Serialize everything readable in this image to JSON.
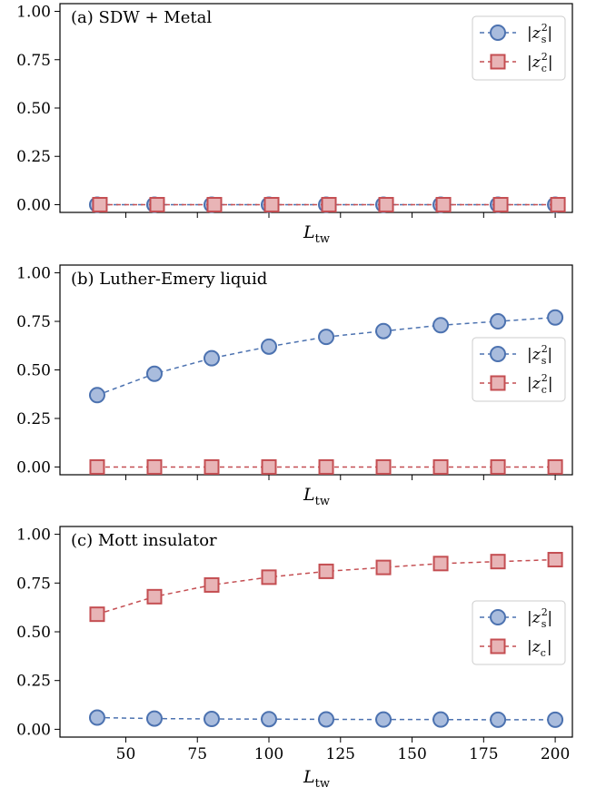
{
  "chart_data": [
    {
      "type": "line",
      "title": "(a) SDW + Metal",
      "xlabel": "L",
      "xlabel_sub": "tw",
      "x": [
        40,
        60,
        80,
        100,
        120,
        140,
        160,
        180,
        200
      ],
      "xlim": [
        27,
        206
      ],
      "ylim": [
        -0.04,
        1.04
      ],
      "x_ticks": [
        50,
        75,
        100,
        125,
        150,
        175,
        200
      ],
      "show_x_tick_labels": false,
      "y_ticks": [
        "0.00",
        "0.25",
        "0.50",
        "0.75",
        "1.00"
      ],
      "legend_position": "top-right",
      "series": [
        {
          "name": "z",
          "name_sup": "2",
          "name_sub": "s",
          "marker": "circle",
          "color": "#4c72b0",
          "fill": "#a9bcdd",
          "x_offset": 0,
          "values": [
            0.0,
            0.0,
            0.0,
            0.0,
            0.0,
            0.0,
            0.0,
            0.0,
            0.0
          ]
        },
        {
          "name": "z",
          "name_sup": "2",
          "name_sub": "c",
          "marker": "square",
          "color": "#c44e52",
          "fill": "#e8b4b6",
          "x_offset": 3,
          "values": [
            0.0,
            0.0,
            0.0,
            0.0,
            0.0,
            0.0,
            0.0,
            0.0,
            0.0
          ]
        }
      ]
    },
    {
      "type": "line",
      "title": "(b) Luther-Emery liquid",
      "xlabel": "L",
      "xlabel_sub": "tw",
      "x": [
        40,
        60,
        80,
        100,
        120,
        140,
        160,
        180,
        200
      ],
      "xlim": [
        27,
        206
      ],
      "ylim": [
        -0.04,
        1.04
      ],
      "x_ticks": [
        50,
        75,
        100,
        125,
        150,
        175,
        200
      ],
      "show_x_tick_labels": false,
      "y_ticks": [
        "0.00",
        "0.25",
        "0.50",
        "0.75",
        "1.00"
      ],
      "legend_position": "center-right",
      "series": [
        {
          "name": "z",
          "name_sup": "2",
          "name_sub": "s",
          "marker": "circle",
          "color": "#4c72b0",
          "fill": "#a9bcdd",
          "x_offset": 0,
          "values": [
            0.37,
            0.48,
            0.56,
            0.62,
            0.67,
            0.7,
            0.73,
            0.75,
            0.77
          ]
        },
        {
          "name": "z",
          "name_sup": "2",
          "name_sub": "c",
          "marker": "square",
          "color": "#c44e52",
          "fill": "#e8b4b6",
          "x_offset": 0,
          "values": [
            0.0,
            0.0,
            0.0,
            0.0,
            0.0,
            0.0,
            0.0,
            0.0,
            0.0
          ]
        }
      ]
    },
    {
      "type": "line",
      "title": "(c) Mott insulator",
      "xlabel": "L",
      "xlabel_sub": "tw",
      "x": [
        40,
        60,
        80,
        100,
        120,
        140,
        160,
        180,
        200
      ],
      "xlim": [
        27,
        206
      ],
      "ylim": [
        -0.04,
        1.04
      ],
      "x_ticks": [
        50,
        75,
        100,
        125,
        150,
        175,
        200
      ],
      "x_tick_labels": [
        "50",
        "75",
        "100",
        "125",
        "150",
        "175",
        "200"
      ],
      "show_x_tick_labels": true,
      "y_ticks": [
        "0.00",
        "0.25",
        "0.50",
        "0.75",
        "1.00"
      ],
      "legend_position": "center-right",
      "series": [
        {
          "name": "z",
          "name_sup": "2",
          "name_sub": "s",
          "marker": "circle",
          "color": "#4c72b0",
          "fill": "#a9bcdd",
          "x_offset": 0,
          "values": [
            0.06,
            0.055,
            0.053,
            0.052,
            0.051,
            0.05,
            0.05,
            0.049,
            0.049
          ]
        },
        {
          "name": "z",
          "name_sup": "",
          "name_sub": "c",
          "marker": "square",
          "color": "#c44e52",
          "fill": "#e8b4b6",
          "x_offset": 0,
          "values": [
            0.59,
            0.68,
            0.74,
            0.78,
            0.81,
            0.83,
            0.85,
            0.86,
            0.87
          ]
        }
      ]
    }
  ]
}
